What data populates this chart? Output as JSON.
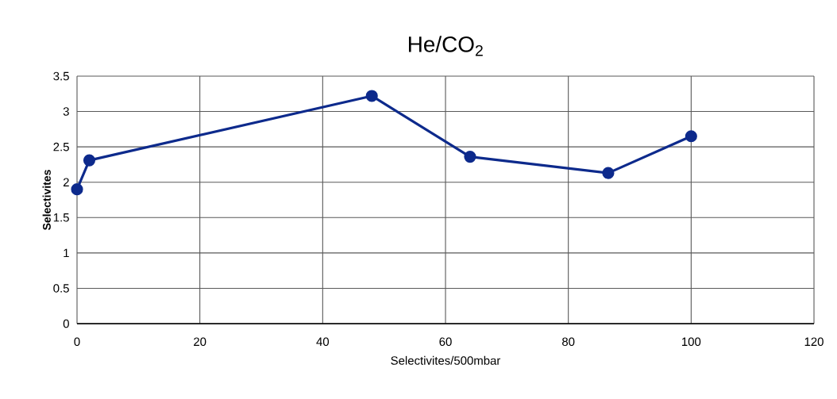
{
  "chart_data": {
    "type": "line",
    "title": "He/CO$_{2}$",
    "xlabel": "Selectivites/500mbar",
    "ylabel": "Selectivites",
    "x": [
      0,
      2,
      48,
      64,
      86.5,
      100
    ],
    "series": [
      {
        "color": "#0d2a8c",
        "values": [
          1.9,
          2.31,
          3.22,
          2.36,
          2.13,
          2.65
        ]
      }
    ],
    "xlim": [
      0,
      120
    ],
    "ylim": [
      0,
      3.5
    ],
    "xticks": [
      0,
      20,
      40,
      60,
      80,
      100,
      120
    ],
    "yticks": [
      0,
      {
        "value": 0.5,
        "label": "0.5"
      },
      1,
      {
        "value": 1.5,
        "label": "1.5"
      },
      2,
      {
        "value": 2.5,
        "label": "2.5"
      },
      3,
      {
        "value": 3.5,
        "label": "3.5"
      }
    ],
    "grid": true,
    "marker": "circle",
    "line_style": "solid"
  }
}
